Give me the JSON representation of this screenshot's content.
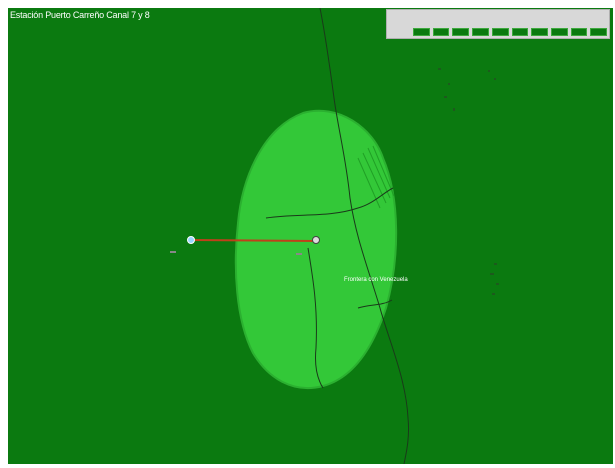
{
  "map": {
    "title": "Estación Puerto Carreño Canal 7 y 8",
    "legend": {
      "title": "",
      "values": [
        "",
        "",
        "",
        "",
        "",
        "",
        "",
        "",
        "",
        "",
        ""
      ]
    },
    "sites": [
      {
        "label": ""
      },
      {
        "label": ""
      }
    ],
    "zone_label": "Frontera con Venezuela",
    "colors": {
      "background": "#0b7a10",
      "coverage": "#33c838",
      "boundary": "#1a3a1a",
      "link": "#c0401a",
      "marker_a": "#9ad8ff",
      "marker_b": "#dddddd"
    }
  }
}
